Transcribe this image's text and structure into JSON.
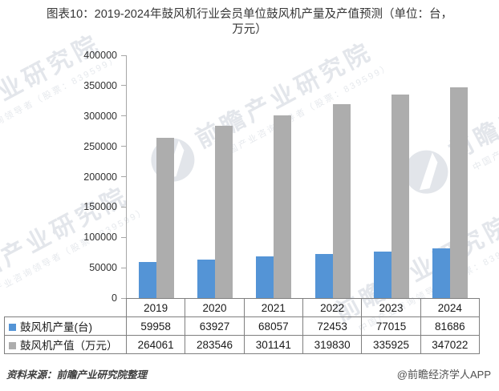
{
  "header": {
    "title_lines": [
      "图表10：2019-2024年鼓风机行业会员单位鼓风机产量及产值预测（单位：台，",
      "万元）"
    ]
  },
  "chart_data": {
    "type": "bar",
    "title": "图表10：2019-2024年鼓风机行业会员单位鼓风机产量及产值预测（单位：台，万元）",
    "categories": [
      "2019",
      "2020",
      "2021",
      "2022",
      "2023",
      "2024"
    ],
    "series": [
      {
        "name": "鼓风机产量(台)",
        "color": "#5494D6",
        "values": [
          59958,
          63927,
          68057,
          72453,
          77015,
          81686
        ]
      },
      {
        "name": "鼓风机产值（万元）",
        "color": "#ADADAD",
        "values": [
          264061,
          283546,
          301141,
          319830,
          335925,
          347022
        ]
      }
    ],
    "xlabel": "",
    "ylabel": "",
    "ylim": [
      0,
      400000
    ],
    "ytick_step": 50000,
    "yticks": [
      "400000",
      "350000",
      "300000",
      "250000",
      "200000",
      "150000",
      "100000",
      "50000",
      "0"
    ],
    "grid": false,
    "legend_position": "table-rows-left"
  },
  "watermark": {
    "main": "前瞻产业研究院",
    "sub": "中国产业咨询领导者（股票：839599）"
  },
  "footer": {
    "source": "资料来源：前瞻产业研究院整理",
    "credit": "@前瞻经济学人APP"
  },
  "colors": {
    "axis": "#A6A6A6",
    "table_border": "#7F7F7F",
    "title_text": "#363636",
    "watermark": "#E3E6EB"
  }
}
